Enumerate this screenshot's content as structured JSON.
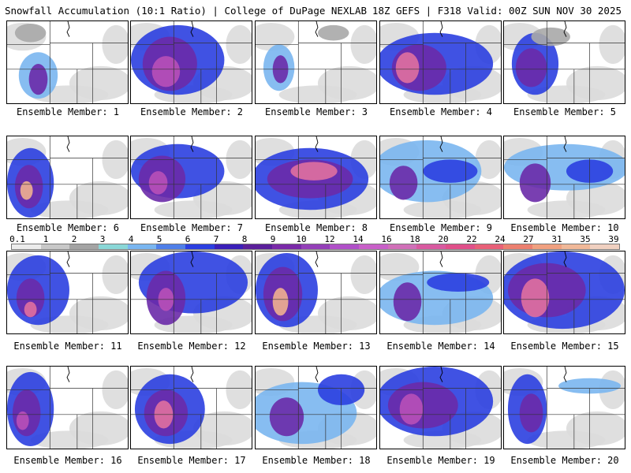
{
  "header": {
    "title": "Snowfall Accumulation (10:1 Ratio) | College of DuPage NEXLAB",
    "run_info": "18Z GEFS | F318 Valid: 00Z SUN NOV 30 2025"
  },
  "members": [
    {
      "label": "Ensemble Member: 1"
    },
    {
      "label": "Ensemble Member: 2"
    },
    {
      "label": "Ensemble Member: 3"
    },
    {
      "label": "Ensemble Member: 4"
    },
    {
      "label": "Ensemble Member: 5"
    },
    {
      "label": "Ensemble Member: 6"
    },
    {
      "label": "Ensemble Member: 7"
    },
    {
      "label": "Ensemble Member: 8"
    },
    {
      "label": "Ensemble Member: 9"
    },
    {
      "label": "Ensemble Member: 10"
    },
    {
      "label": "Ensemble Member: 11"
    },
    {
      "label": "Ensemble Member: 12"
    },
    {
      "label": "Ensemble Member: 13"
    },
    {
      "label": "Ensemble Member: 14"
    },
    {
      "label": "Ensemble Member: 15"
    },
    {
      "label": "Ensemble Member: 16"
    },
    {
      "label": "Ensemble Member: 17"
    },
    {
      "label": "Ensemble Member: 18"
    },
    {
      "label": "Ensemble Member: 19"
    },
    {
      "label": "Ensemble Member: 20"
    }
  ],
  "legend": {
    "values": [
      "0.1",
      "1",
      "2",
      "3",
      "4",
      "5",
      "6",
      "7",
      "8",
      "9",
      "10",
      "12",
      "14",
      "16",
      "18",
      "20",
      "22",
      "24",
      "27",
      "31",
      "35",
      "39"
    ],
    "colors": [
      "#ececec",
      "#c8c8c8",
      "#a4a4a4",
      "#8ad7d7",
      "#7ab6f0",
      "#4f7fe8",
      "#2b3fe0",
      "#3a1fb8",
      "#5a1f9a",
      "#7a2aa8",
      "#9440b8",
      "#b050c8",
      "#c860c8",
      "#d070b8",
      "#d85aa0",
      "#e0508a",
      "#e86078",
      "#ec8070",
      "#f0a080",
      "#f0b898",
      "#f0d0c0"
    ]
  },
  "colors": {
    "light_gray": "#dcdcdc",
    "mid_gray": "#a9a9a9",
    "cyan": "#8ad7d7",
    "light_blue": "#7ab6f0",
    "blue": "#2b3fe0",
    "purple": "#6a2aa8",
    "magenta": "#b850b8",
    "pink": "#e070a0",
    "peach": "#f0b090"
  }
}
